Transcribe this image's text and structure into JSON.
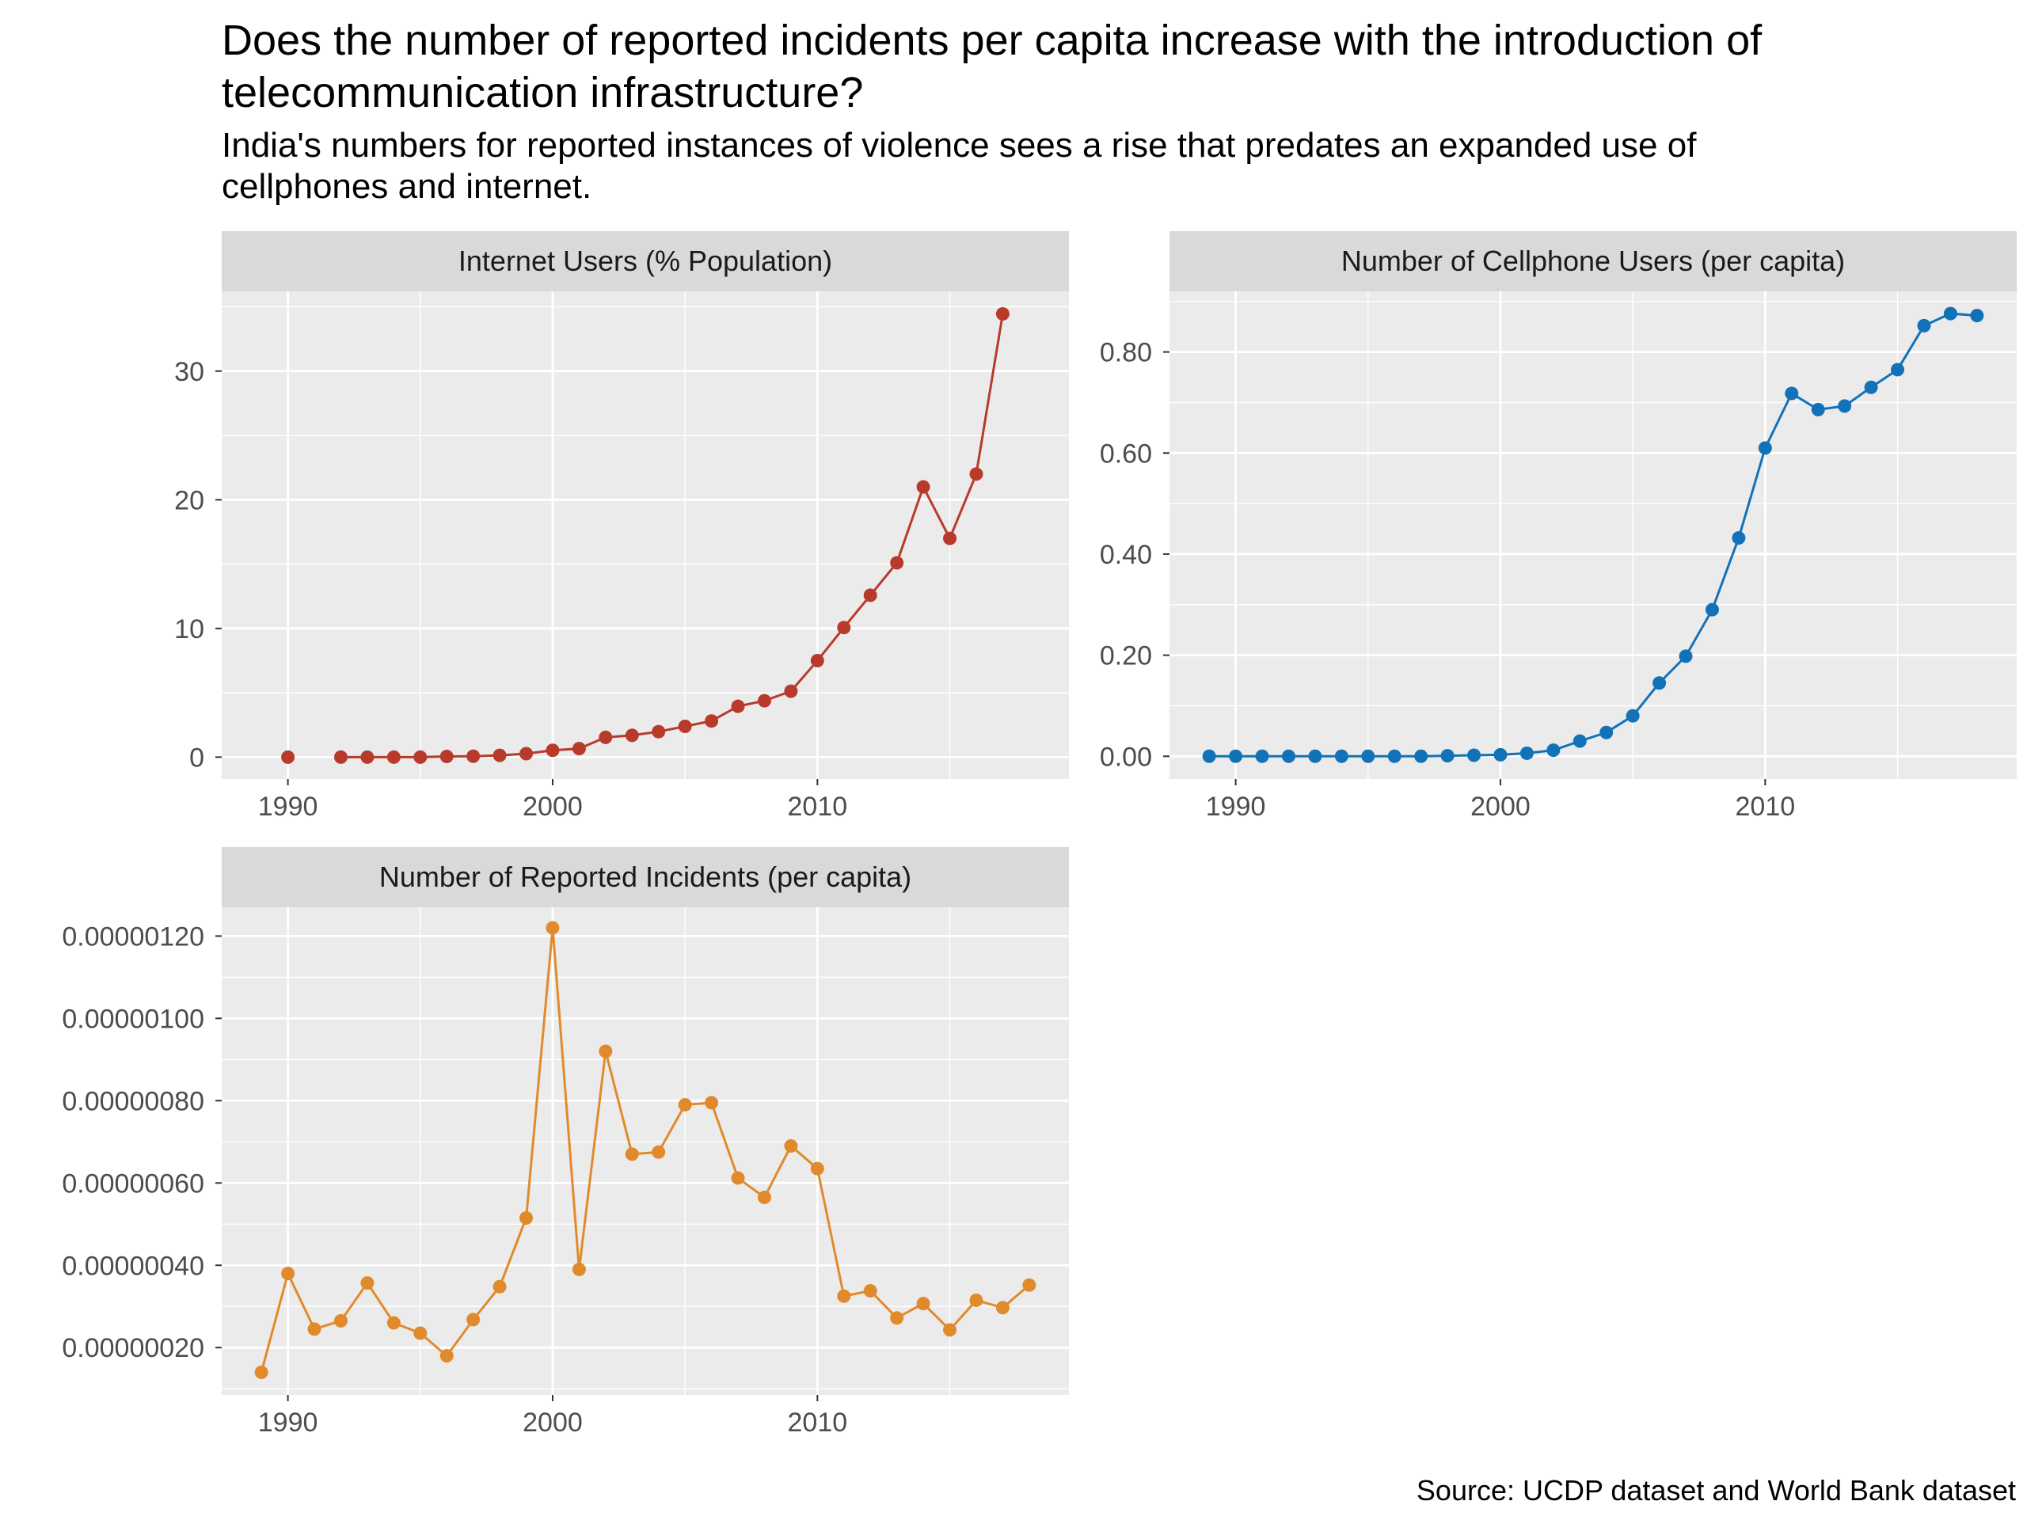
{
  "title": "Does the number of reported incidents per capita increase with the introduction of telecommunication infrastructure?",
  "subtitle": "India's numbers for reported instances of violence sees a rise that predates an expanded use of cellphones and internet.",
  "caption": "Source: UCDP dataset and World Bank dataset",
  "colors": {
    "panel_bg": "#EBEBEB",
    "strip_bg": "#D9D9D9",
    "grid": "#FFFFFF",
    "tick": "#333333"
  },
  "chart_data": [
    {
      "type": "line",
      "title": "Internet Users (% Population)",
      "color": "#B83A2A",
      "x": [
        1990,
        1992,
        1993,
        1994,
        1995,
        1996,
        1997,
        1998,
        1999,
        2000,
        2001,
        2002,
        2003,
        2004,
        2005,
        2006,
        2007,
        2008,
        2009,
        2010,
        2011,
        2012,
        2013,
        2014,
        2015,
        2016,
        2017
      ],
      "values": [
        0.0,
        0.0,
        0.0,
        0.0,
        0.0,
        0.05,
        0.07,
        0.14,
        0.27,
        0.53,
        0.66,
        1.54,
        1.69,
        1.98,
        2.39,
        2.81,
        3.95,
        4.38,
        5.12,
        7.5,
        10.07,
        12.58,
        15.1,
        21.0,
        17.0,
        22.0,
        34.45
      ],
      "xticks": [
        1990,
        2000,
        2010
      ],
      "xtick_labels": [
        "1990",
        "2000",
        "2010"
      ],
      "yticks": [
        0,
        10,
        20,
        30
      ],
      "ytick_labels": [
        "0",
        "10",
        "20",
        "30"
      ],
      "xlim": [
        1987.5,
        2019.5
      ],
      "ylim": [
        -1.7,
        36.2
      ]
    },
    {
      "type": "line",
      "title": "Number of Cellphone Users (per capita)",
      "color": "#1272B8",
      "x": [
        1989,
        1990,
        1991,
        1992,
        1993,
        1994,
        1995,
        1996,
        1997,
        1998,
        1999,
        2000,
        2001,
        2002,
        2003,
        2004,
        2005,
        2006,
        2007,
        2008,
        2009,
        2010,
        2011,
        2012,
        2013,
        2014,
        2015,
        2016,
        2017,
        2018
      ],
      "values": [
        0.0,
        0.0,
        0.0,
        0.0,
        0.0,
        0.0,
        0.0,
        0.0,
        0.0,
        0.001,
        0.002,
        0.003,
        0.006,
        0.012,
        0.03,
        0.047,
        0.08,
        0.145,
        0.198,
        0.29,
        0.432,
        0.61,
        0.718,
        0.686,
        0.693,
        0.73,
        0.765,
        0.852,
        0.876,
        0.872
      ],
      "xticks": [
        1990,
        2000,
        2010
      ],
      "xtick_labels": [
        "1990",
        "2000",
        "2010"
      ],
      "yticks": [
        0,
        0.2,
        0.4,
        0.6,
        0.8
      ],
      "ytick_labels": [
        "0.00",
        "0.20",
        "0.40",
        "0.60",
        "0.80"
      ],
      "xlim": [
        1987.5,
        2019.5
      ],
      "ylim": [
        -0.045,
        0.92
      ]
    },
    {
      "type": "line",
      "title": "Number of Reported Incidents (per capita)",
      "color": "#E08A2C",
      "x": [
        1989,
        1990,
        1991,
        1992,
        1993,
        1994,
        1995,
        1996,
        1997,
        1998,
        1999,
        2000,
        2001,
        2002,
        2003,
        2004,
        2005,
        2006,
        2007,
        2008,
        2009,
        2010,
        2011,
        2012,
        2013,
        2014,
        2015,
        2016,
        2017,
        2018
      ],
      "values": [
        1.4e-07,
        3.8e-07,
        2.45e-07,
        2.65e-07,
        3.57e-07,
        2.6e-07,
        2.35e-07,
        1.8e-07,
        2.68e-07,
        3.48e-07,
        5.15e-07,
        1.22e-06,
        3.9e-07,
        9.2e-07,
        6.7e-07,
        6.75e-07,
        7.9e-07,
        7.95e-07,
        6.12e-07,
        5.65e-07,
        6.9e-07,
        6.35e-07,
        3.25e-07,
        3.38e-07,
        2.72e-07,
        3.07e-07,
        2.43e-07,
        3.15e-07,
        2.97e-07,
        3.52e-07
      ],
      "xticks": [
        1990,
        2000,
        2010
      ],
      "xtick_labels": [
        "1990",
        "2000",
        "2010"
      ],
      "yticks": [
        2e-07,
        4e-07,
        6e-07,
        8e-07,
        1e-06,
        1.2e-06
      ],
      "ytick_labels": [
        "0.00000020",
        "0.00000040",
        "0.00000060",
        "0.00000080",
        "0.00000100",
        "0.00000120"
      ],
      "xlim": [
        1987.5,
        2019.5
      ],
      "ylim": [
        8.5e-08,
        1.27e-06
      ]
    }
  ]
}
